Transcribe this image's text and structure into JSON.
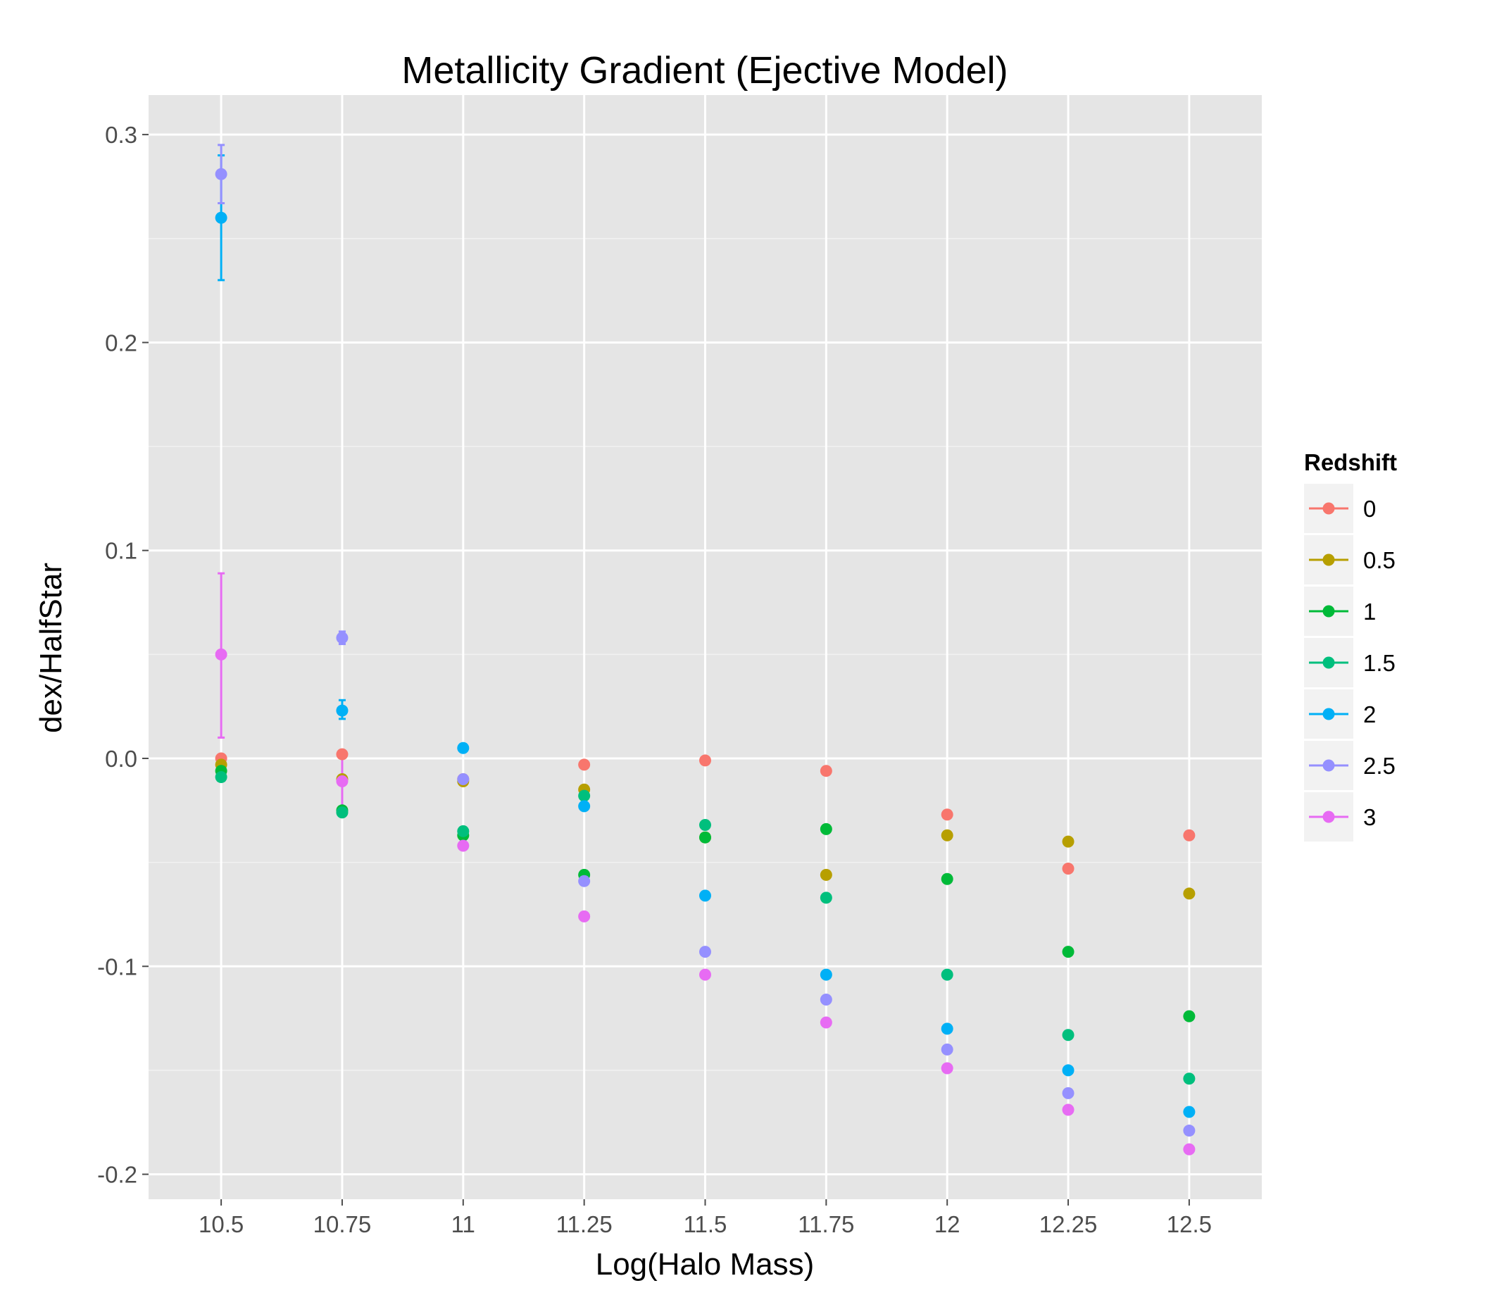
{
  "chart_data": {
    "type": "scatter",
    "title": "Metallicity Gradient (Ejective Model)",
    "xlabel": "Log(Halo Mass)",
    "ylabel": "dex/HalfStar",
    "x_ticks": [
      "10.5",
      "10.75",
      "11",
      "11.25",
      "11.5",
      "11.75",
      "12",
      "12.25",
      "12.5"
    ],
    "y_ticks": [
      "-0.2",
      "-0.1",
      "0.0",
      "0.1",
      "0.2",
      "0.3"
    ],
    "x_values": [
      10.5,
      10.75,
      11,
      11.25,
      11.5,
      11.75,
      12,
      12.25,
      12.5
    ],
    "y_tick_values": [
      -0.2,
      -0.1,
      0.0,
      0.1,
      0.2,
      0.3
    ],
    "xlim": [
      10.35,
      12.65
    ],
    "ylim": [
      -0.212,
      0.319
    ],
    "grid": true,
    "legend": {
      "title": "Redshift",
      "position": "right"
    },
    "series": [
      {
        "name": "0",
        "color": "#F8766D",
        "values": [
          0.0,
          0.002,
          -0.01,
          -0.003,
          -0.001,
          -0.006,
          -0.027,
          -0.053,
          -0.037
        ]
      },
      {
        "name": "0.5",
        "color": "#B79F00",
        "values": [
          -0.003,
          -0.01,
          -0.011,
          -0.015,
          -0.038,
          -0.056,
          -0.037,
          -0.04,
          -0.065
        ]
      },
      {
        "name": "1",
        "color": "#00BA38",
        "values": [
          -0.006,
          -0.025,
          -0.037,
          -0.056,
          -0.038,
          -0.034,
          -0.058,
          -0.093,
          -0.124
        ]
      },
      {
        "name": "1.5",
        "color": "#00BF7D",
        "values": [
          -0.009,
          -0.026,
          -0.035,
          -0.018,
          -0.032,
          -0.067,
          -0.104,
          -0.133,
          -0.154
        ]
      },
      {
        "name": "2",
        "color": "#00B0F6",
        "values": [
          0.26,
          0.023,
          0.005,
          -0.023,
          -0.066,
          -0.104,
          -0.13,
          -0.15,
          -0.17
        ],
        "errors": [
          [
            0.23,
            0.29
          ],
          [
            0.019,
            0.028
          ],
          null,
          null,
          null,
          null,
          null,
          null,
          null
        ]
      },
      {
        "name": "2.5",
        "color": "#9590FF",
        "values": [
          0.281,
          0.058,
          -0.01,
          -0.059,
          -0.093,
          -0.116,
          -0.14,
          -0.161,
          -0.179
        ],
        "errors": [
          [
            0.267,
            0.295
          ],
          [
            0.055,
            0.061
          ],
          null,
          null,
          null,
          null,
          null,
          null,
          null
        ]
      },
      {
        "name": "3",
        "color": "#E76BF3",
        "values": [
          0.05,
          -0.011,
          -0.042,
          -0.076,
          -0.104,
          -0.127,
          -0.149,
          -0.169,
          -0.188
        ],
        "errors": [
          [
            0.01,
            0.089
          ],
          [
            -0.025,
            0.002
          ],
          null,
          null,
          null,
          null,
          null,
          null,
          null
        ]
      }
    ]
  }
}
